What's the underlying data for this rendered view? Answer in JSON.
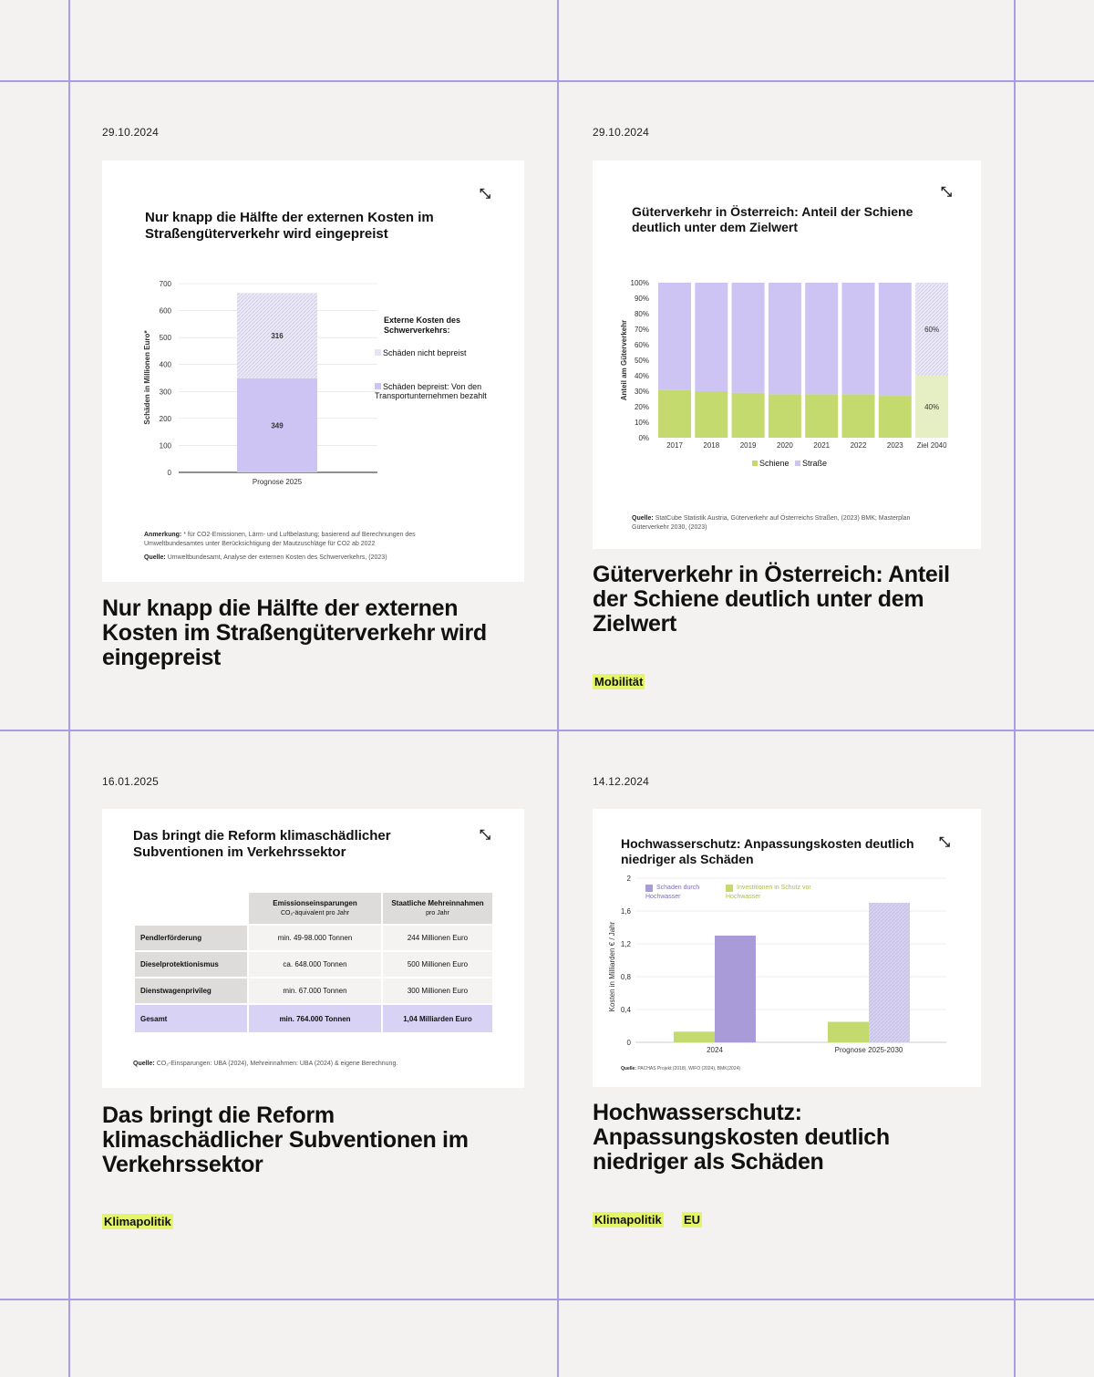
{
  "colors": {
    "grid": "#a89ce6",
    "purple": "#cdc4f4",
    "green": "#c4da6e",
    "tag": "#e4f56a"
  },
  "posts": [
    {
      "date": "29.10.2024",
      "chart_title": "Nur knapp die Hälfte der externen Kosten im Straßengüterverkehr wird eingepreist",
      "headline": "Nur knapp die Hälfte der externen Kosten im Straßengüterverkehr wird eingepreist",
      "tags": [],
      "legend_title": "Externe Kosten des Schwerverkehrs:",
      "legend": [
        "Schäden nicht bepreist",
        "Schäden bepreist: Von den Transportunternehmen bezahlt"
      ],
      "note_label": "Anmerkung:",
      "note": "* für CO2-Emissionen, Lärm- und Luftbelastung; basierend auf Berechnungen des Umweltbundesamtes unter Berücksichtigung der Mautzuschläge für CO2 ab 2022",
      "source_label": "Quelle:",
      "source": "Umweltbundesamt, Analyse der externen Kosten des Schwerverkehrs, (2023)"
    },
    {
      "date": "29.10.2024",
      "chart_title": "Güterverkehr in Österreich: Anteil der Schiene deutlich unter dem Zielwert",
      "headline": "Güterverkehr in Österreich: Anteil der Schiene deutlich unter dem Zielwert",
      "tags": [
        "Mobilität"
      ],
      "source_label": "Quelle:",
      "source": "StatCube Statistik Austria, Güterverkehr auf Österreichs Straßen, (2023) BMK; Masterplan Güterverkehr 2030, (2023)"
    },
    {
      "date": "16.01.2025",
      "chart_title": "Das bringt die Reform klimaschädlicher Subventionen im Verkehrssektor",
      "headline": "Das bringt die Reform klimaschädlicher Subventionen im Verkehrssektor",
      "tags": [
        "Klimapolitik"
      ],
      "table": {
        "headers": [
          {
            "main": "Emissionseinsparungen",
            "sub": "CO₂-äquivalent pro Jahr"
          },
          {
            "main": "Staatliche Mehreinnahmen",
            "sub": "pro Jahr"
          }
        ],
        "rows": [
          {
            "label": "Pendlerförderung",
            "a": "min. 49-98.000 Tonnen",
            "b": "244 Millionen Euro"
          },
          {
            "label": "Dieselprotektionismus",
            "a": "ca. 648.000 Tonnen",
            "b": "500 Millionen Euro"
          },
          {
            "label": "Dienstwagenprivileg",
            "a": "min. 67.000 Tonnen",
            "b": "300 Millionen Euro"
          }
        ],
        "total": {
          "label": "Gesamt",
          "a": "min. 764.000 Tonnen",
          "b": "1,04 Milliarden Euro"
        }
      },
      "source_label": "Quelle:",
      "source": "CO₂-Einsparungen: UBA (2024), Mehreinnahmen: UBA (2024) & eigene Berechnung."
    },
    {
      "date": "14.12.2024",
      "chart_title": "Hochwasserschutz: Anpassungskosten deutlich niedriger als Schäden",
      "headline": "Hochwasserschutz: Anpassungskosten deutlich niedriger als Schäden",
      "tags": [
        "Klimapolitik",
        "EU"
      ],
      "legend": [
        "Schaden durch Hochwasser",
        "Investitionen in Schutz vor Hochwasser"
      ],
      "source_label": "Quelle:",
      "source": "PACHAS Projekt (2018), WIFO (2024), BMK(2024)"
    }
  ],
  "chart_data": [
    {
      "type": "bar",
      "stacked": true,
      "categories": [
        "Prognose 2025"
      ],
      "series": [
        {
          "name": "Schäden bepreist: Von den Transportunternehmen bezahlt",
          "values": [
            349
          ]
        },
        {
          "name": "Schäden nicht bepreist",
          "values": [
            316
          ]
        }
      ],
      "yticks": [
        "0",
        "100",
        "200",
        "300",
        "400",
        "500",
        "600",
        "700"
      ],
      "ylim": [
        0,
        700
      ],
      "ylabel": "Schäden in Millionen Euro*",
      "xlabel": ""
    },
    {
      "type": "bar",
      "stacked": true,
      "percent": true,
      "categories": [
        "2017",
        "2018",
        "2019",
        "2020",
        "2021",
        "2022",
        "2023",
        "Ziel 2040"
      ],
      "series": [
        {
          "name": "Schiene",
          "values": [
            31,
            30,
            29,
            28,
            28,
            28,
            27,
            40
          ]
        },
        {
          "name": "Straße",
          "values": [
            69,
            70,
            71,
            72,
            72,
            72,
            73,
            60
          ]
        }
      ],
      "target_labels": [
        "60%",
        "40%"
      ],
      "yticks": [
        "0%",
        "10%",
        "20%",
        "30%",
        "40%",
        "50%",
        "60%",
        "70%",
        "80%",
        "90%",
        "100%"
      ],
      "ylim": [
        0,
        100
      ],
      "ylabel": "Anteil am Güterverkehr",
      "xlabel": ""
    },
    {
      "type": "bar",
      "categories": [
        "2024",
        "Prognose 2025-2030"
      ],
      "series": [
        {
          "name": "Investitionen in Schutz vor Hochwasser",
          "values": [
            0.13,
            0.25
          ]
        },
        {
          "name": "Schaden durch Hochwasser",
          "values": [
            1.3,
            1.7
          ]
        }
      ],
      "yticks": [
        "0",
        "0,4",
        "0,8",
        "1,2",
        "1,6",
        "2"
      ],
      "ylim": [
        0,
        2
      ],
      "ylabel": "Kosten in Milliarden € / Jahr",
      "xlabel": ""
    }
  ]
}
